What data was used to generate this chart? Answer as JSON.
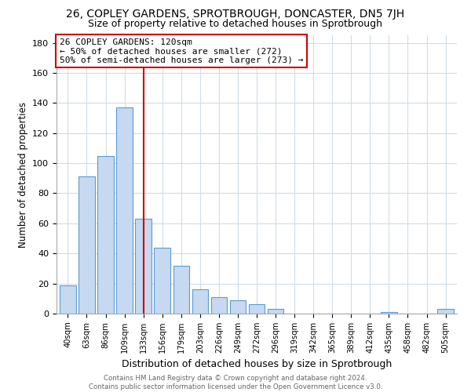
{
  "title": "26, COPLEY GARDENS, SPROTBROUGH, DONCASTER, DN5 7JH",
  "subtitle": "Size of property relative to detached houses in Sprotbrough",
  "xlabel": "Distribution of detached houses by size in Sprotbrough",
  "ylabel": "Number of detached properties",
  "bar_labels": [
    "40sqm",
    "63sqm",
    "86sqm",
    "109sqm",
    "133sqm",
    "156sqm",
    "179sqm",
    "203sqm",
    "226sqm",
    "249sqm",
    "272sqm",
    "296sqm",
    "319sqm",
    "342sqm",
    "365sqm",
    "389sqm",
    "412sqm",
    "435sqm",
    "458sqm",
    "482sqm",
    "505sqm"
  ],
  "bar_heights": [
    19,
    91,
    105,
    137,
    63,
    44,
    32,
    16,
    11,
    9,
    6,
    3,
    0,
    0,
    0,
    0,
    0,
    1,
    0,
    0,
    3
  ],
  "bar_color": "#c6d9f0",
  "bar_edge_color": "#5b9bd5",
  "vline_x": 4.0,
  "vline_color": "#cc0000",
  "annotation_title": "26 COPLEY GARDENS: 120sqm",
  "annotation_line1": "← 50% of detached houses are smaller (272)",
  "annotation_line2": "50% of semi-detached houses are larger (273) →",
  "annotation_box_color": "#ffffff",
  "annotation_box_edge": "#cc0000",
  "ylim": [
    0,
    185
  ],
  "yticks": [
    0,
    20,
    40,
    60,
    80,
    100,
    120,
    140,
    160,
    180
  ],
  "footer_line1": "Contains HM Land Registry data © Crown copyright and database right 2024.",
  "footer_line2": "Contains public sector information licensed under the Open Government Licence v3.0.",
  "bg_color": "#ffffff",
  "grid_color": "#d0dde8",
  "title_fontsize": 10,
  "subtitle_fontsize": 9
}
